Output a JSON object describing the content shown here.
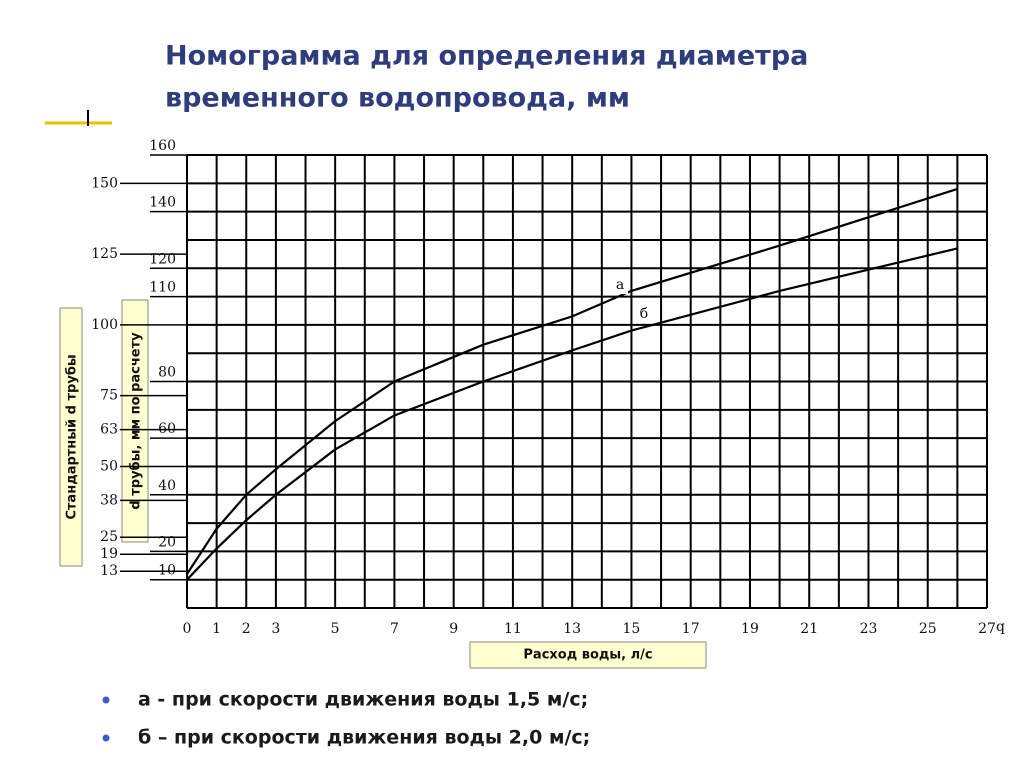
{
  "chart_data": {
    "type": "line",
    "title": [
      "Номограмма для определения диаметра",
      "временного водопровода, мм"
    ],
    "x_label": "Расход воды, л/с",
    "x_axis_symbol": "q",
    "y_label": "d трубы, мм по расчету",
    "y_standard_label": "Стандартный d трубы",
    "x": [
      0,
      1,
      2,
      3,
      5,
      7,
      10,
      13,
      15,
      20,
      26
    ],
    "series": [
      {
        "name": "а",
        "color": "#000000",
        "values": [
          12,
          28,
          40,
          49,
          66,
          80,
          93,
          103,
          112,
          128,
          148
        ]
      },
      {
        "name": "б",
        "color": "#000000",
        "values": [
          10,
          21,
          31,
          40,
          56,
          68,
          80,
          91,
          98,
          112,
          127
        ]
      }
    ],
    "xlim": [
      0,
      27
    ],
    "ylim": [
      0,
      160
    ],
    "xticks": [
      0,
      1,
      2,
      3,
      5,
      7,
      9,
      11,
      13,
      15,
      17,
      19,
      21,
      23,
      25,
      27
    ],
    "yticks": [
      10,
      20,
      40,
      60,
      80,
      110,
      120,
      140,
      160
    ],
    "y_standard_ticks": [
      13,
      19,
      25,
      38,
      50,
      63,
      75,
      100,
      125,
      150
    ],
    "xgrid": [
      0,
      1,
      2,
      3,
      4,
      5,
      6,
      7,
      8,
      9,
      10,
      11,
      12,
      13,
      14,
      15,
      16,
      17,
      18,
      19,
      20,
      21,
      22,
      23,
      24,
      25,
      26,
      27
    ],
    "ygrid": [
      0,
      10,
      20,
      30,
      40,
      50,
      60,
      70,
      80,
      90,
      100,
      110,
      120,
      130,
      140,
      150,
      160
    ],
    "notes": [
      "а  - при скорости движения воды 1,5 м/с;",
      "б – при скорости движения воды 2,0 м/с;"
    ]
  }
}
